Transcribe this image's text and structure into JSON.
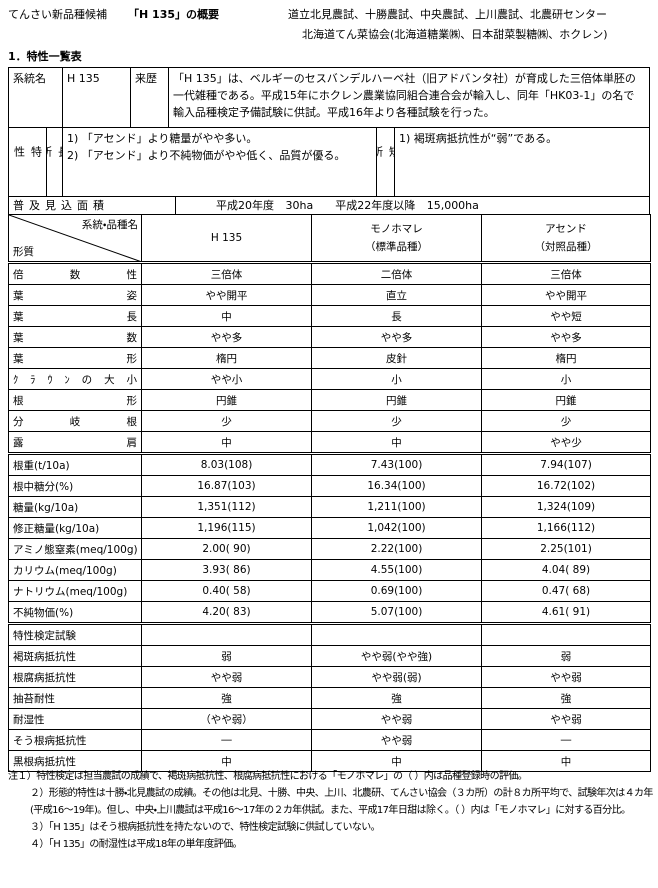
{
  "header": {
    "category": "てんさい新品種候補",
    "title": "「H 135」の概要",
    "organizations": [
      "道立北見農試、十勝農試、中央農試、上川農試、北農研センター",
      "北海道てん菜協会(北海道糖業㈱、日本甜菜製糖㈱、ホクレン)"
    ]
  },
  "section_title": "1．特性一覧表",
  "info": {
    "line_label": "系統名",
    "line_name": "H 135",
    "origin_label": "来歴",
    "origin_text": "「H 135」は、ベルギーのセスバンデルハーベ社（旧アドバンタ社）が育成した三倍体単胚の一代雑種である。平成15年にホクレン農業協同組合連合会が輸入し、同年「HK03-1」の名で輸入品種検定予備試験に供試。平成16年より各種試験を行った。",
    "trait_label": "特性",
    "merits_label": "長所",
    "merits": [
      "1) 「アセンド」より糖量がやや多い。",
      "2) 「アセンド」より不純物価がやや低く、品質が優る。"
    ],
    "demerits_label": "短所",
    "demerits": [
      "1) 褐斑病抵抗性が“弱”である。"
    ],
    "area_label": "普及見込面積",
    "area": [
      "平成20年度 30ha",
      "平成22年度以降 15,000ha"
    ]
  },
  "table": {
    "corner_top": "系統・品種名",
    "corner_bottom": "形質",
    "columns": [
      {
        "name": "H 135"
      },
      {
        "name": "モノホマレ",
        "note": "（標準品種）"
      },
      {
        "name": "アセンド",
        "note": "（対照品種）"
      }
    ],
    "groups": [
      {
        "rows": [
          {
            "label": "倍数性",
            "values": [
              "三倍体",
              "二倍体",
              "三倍体"
            ]
          },
          {
            "label": "葉姿",
            "values": [
              "やや開平",
              "直立",
              "やや開平"
            ]
          },
          {
            "label": "葉長",
            "values": [
              "中",
              "長",
              "やや短"
            ]
          },
          {
            "label": "葉数",
            "values": [
              "やや多",
              "やや多",
              "やや多"
            ]
          },
          {
            "label": "葉形",
            "values": [
              "楕円",
              "皮針",
              "楕円"
            ]
          },
          {
            "label": "ｸﾗｳﾝの大小",
            "values": [
              "やや小",
              "小",
              "小"
            ]
          },
          {
            "label": "根形",
            "values": [
              "円錐",
              "円錐",
              "円錐"
            ]
          },
          {
            "label": "分岐根",
            "values": [
              "少",
              "少",
              "少"
            ]
          },
          {
            "label": "露肩",
            "values": [
              "中",
              "中",
              "やや少"
            ]
          }
        ]
      },
      {
        "rows": [
          {
            "label": "根重(t/10a)",
            "values": [
              "8.03(108)",
              "7.43(100)",
              "7.94(107)"
            ]
          },
          {
            "label": "根中糖分(%)",
            "values": [
              "16.87(103)",
              "16.34(100)",
              "16.72(102)"
            ]
          },
          {
            "label": "糖量(kg/10a)",
            "values": [
              "1,351(112)",
              "1,211(100)",
              "1,324(109)"
            ]
          },
          {
            "label": "修正糖量(kg/10a)",
            "values": [
              "1,196(115)",
              "1,042(100)",
              "1,166(112)"
            ]
          },
          {
            "label": "アミノ態窒素(meq/100g)",
            "values": [
              "2.00( 90)",
              "2.22(100)",
              "2.25(101)"
            ]
          },
          {
            "label": "カリウム(meq/100g)",
            "values": [
              "3.93( 86)",
              "4.55(100)",
              "4.04( 89)"
            ]
          },
          {
            "label": "ナトリウム(meq/100g)",
            "values": [
              "0.40( 58)",
              "0.69(100)",
              "0.47( 68)"
            ]
          },
          {
            "label": "不純物価(%)",
            "values": [
              "4.20( 83)",
              "5.07(100)",
              "4.61( 91)"
            ]
          }
        ]
      },
      {
        "title": "特性検定試験",
        "rows": [
          {
            "label": "褐斑病抵抗性",
            "values": [
              "弱",
              "やや弱(やや強)",
              "弱"
            ]
          },
          {
            "label": "根腐病抵抗性",
            "values": [
              "やや弱",
              "やや弱(弱)",
              "やや弱"
            ]
          },
          {
            "label": "抽苔耐性",
            "values": [
              "強",
              "強",
              "強"
            ]
          },
          {
            "label": "耐湿性",
            "values": [
              "（やや弱）",
              "やや弱",
              "やや弱"
            ]
          },
          {
            "label": "そう根病抵抗性",
            "values": [
              "―",
              "やや弱",
              "―"
            ]
          },
          {
            "label": "黒根病抵抗性",
            "values": [
              "中",
              "中",
              "中"
            ]
          }
        ]
      }
    ]
  },
  "notes": [
    "注１）特性検定は担当農試の成績で、褐斑病抵抗性、根腐病抵抗性における「モノホマレ」の（ ）内は品種登録時の評価。",
    "２）形態的特性は十勝・北見農試の成績。その他は北見、十勝、中央、上川、北農研、てんさい協会（３カ所）の計８カ所平均で、試験年次は４カ年(平成16～19年)。但し、中央・上川農試は平成16～17年の２カ年供試。また、平成17年日甜は除く。（ ）内は「モノホマレ」に対する百分比。",
    "３）「H 135」はそう根病抵抗性を持たないので、特性検定試験に供試していない。",
    "４）「H 135」の耐湿性は平成18年の単年度評価。"
  ]
}
